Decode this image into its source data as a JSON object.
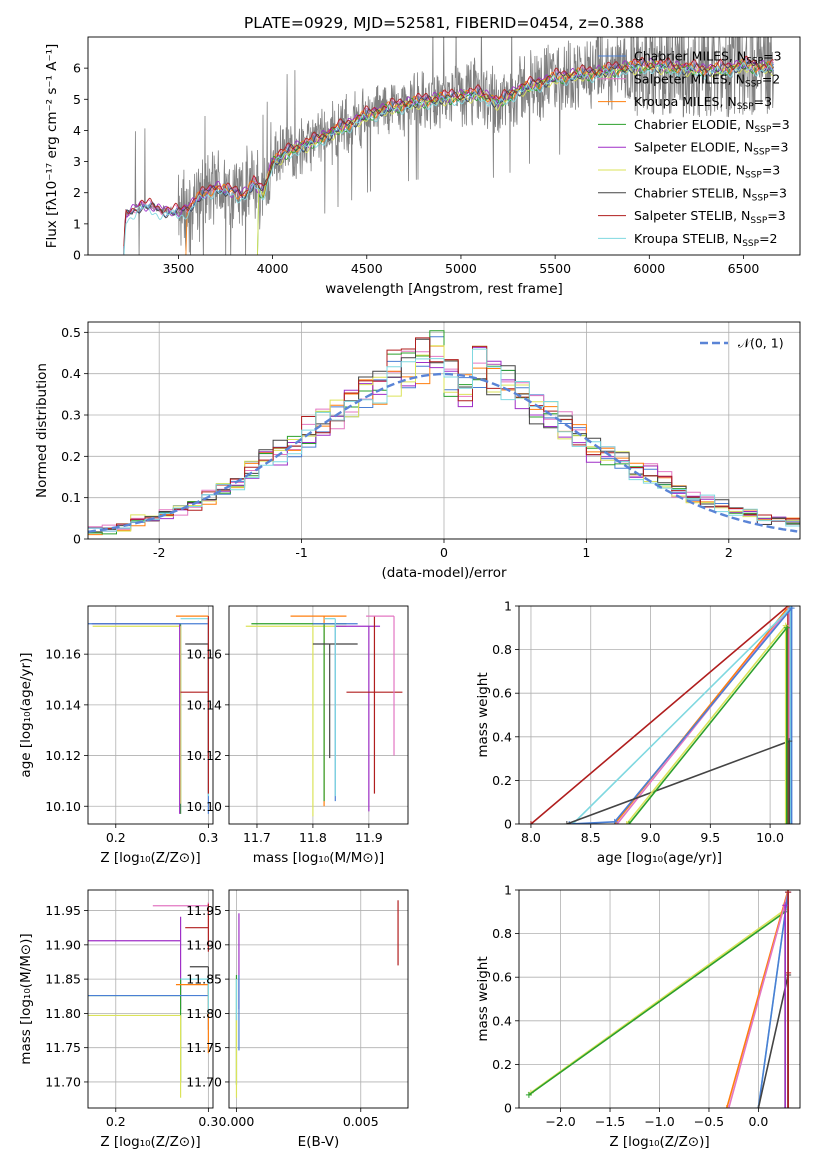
{
  "title": "PLATE=0929, MJD=52581, FIBERID=0454, z=0.388",
  "chart_data": [
    {
      "id": "spectrum",
      "type": "line",
      "xlabel": "wavelength [Angstrom, rest frame]",
      "ylabel": "Flux [fλ10⁻¹⁷ erg cm⁻² s⁻¹ A⁻¹]",
      "xlim": [
        3020,
        6800
      ],
      "ylim": [
        0,
        7
      ],
      "xticks": [
        3500,
        4000,
        4500,
        5000,
        5500,
        6000,
        6500
      ],
      "yticks": [
        0,
        1,
        2,
        3,
        4,
        5,
        6
      ],
      "grid": false,
      "legend_position": "top-right",
      "data_trend": {
        "x": [
          3210,
          3220,
          3300,
          3400,
          3500,
          3550,
          3600,
          3700,
          3750,
          3800,
          3850,
          3900,
          3950,
          4000,
          4100,
          4200,
          4300,
          4400,
          4500,
          4600,
          4700,
          4800,
          4900,
          5000,
          5100,
          5200,
          5300,
          5400,
          5500,
          5600,
          5700,
          5800,
          5900,
          6000,
          6100,
          6200,
          6300,
          6400,
          6500,
          6600,
          6650
        ],
        "y": [
          0,
          1.25,
          1.6,
          1.45,
          1.35,
          1.5,
          1.8,
          2.2,
          2.05,
          2.0,
          1.95,
          2.3,
          2.0,
          3.0,
          3.4,
          3.6,
          3.9,
          4.2,
          4.5,
          4.7,
          4.85,
          4.95,
          5.05,
          5.1,
          5.2,
          4.9,
          5.3,
          5.5,
          5.7,
          5.8,
          5.85,
          5.95,
          6.05,
          6.1,
          6.05,
          6.0,
          5.95,
          6.0,
          6.1,
          6.05,
          6.0
        ]
      },
      "series": [
        {
          "name": "Chabrier MILES, N<sub>SSP</sub>=3",
          "color": "#4a7fd4"
        },
        {
          "name": "Salpeter MILES, N<sub>SSP</sub>=2",
          "color": "#e377c2"
        },
        {
          "name": "Kroupa MILES, N<sub>SSP</sub>=3",
          "color": "#ff7f0e"
        },
        {
          "name": "Chabrier ELODIE, N<sub>SSP</sub>=3",
          "color": "#2ca02c"
        },
        {
          "name": "Salpeter ELODIE, N<sub>SSP</sub>=3",
          "color": "#9f2fc7"
        },
        {
          "name": "Kroupa ELODIE, N<sub>SSP</sub>=3",
          "color": "#dbe35a"
        },
        {
          "name": "Chabrier STELIB, N<sub>SSP</sub>=3",
          "color": "#444444"
        },
        {
          "name": "Salpeter STELIB, N<sub>SSP</sub>=3",
          "color": "#b01e1e"
        },
        {
          "name": "Kroupa STELIB, N<sub>SSP</sub>=2",
          "color": "#7fd8e0"
        }
      ]
    },
    {
      "id": "residuals",
      "type": "histogram",
      "xlabel": "(data-model)/error",
      "ylabel": "Normed distribution",
      "xlim": [
        -2.5,
        2.5
      ],
      "ylim": [
        0,
        0.525
      ],
      "xticks": [
        -2,
        -1,
        0,
        1,
        2
      ],
      "yticks": [
        0.0,
        0.1,
        0.2,
        0.3,
        0.4,
        0.5
      ],
      "grid": true,
      "legend_position": "top-right",
      "legend": "𝒩(0, 1)",
      "gaussian": {
        "mean": 0,
        "sigma": 1,
        "color": "#5a84d6"
      },
      "bin_edges_range": [
        -2.5,
        2.5
      ],
      "bin_count": 50,
      "base_values": [
        0.02,
        0.025,
        0.03,
        0.045,
        0.05,
        0.06,
        0.07,
        0.08,
        0.1,
        0.12,
        0.14,
        0.17,
        0.19,
        0.21,
        0.23,
        0.26,
        0.28,
        0.31,
        0.33,
        0.36,
        0.38,
        0.4,
        0.41,
        0.43,
        0.45,
        0.4,
        0.37,
        0.42,
        0.38,
        0.37,
        0.35,
        0.32,
        0.3,
        0.28,
        0.26,
        0.22,
        0.2,
        0.19,
        0.17,
        0.16,
        0.14,
        0.12,
        0.1,
        0.09,
        0.08,
        0.07,
        0.06,
        0.05,
        0.045,
        0.04
      ]
    },
    {
      "id": "age-vs-Z",
      "type": "errorbar",
      "xlabel": "Z [log₁₀(Z/Z⊙)]",
      "ylabel": "age  [log₁₀(age/yr)]",
      "xlim": [
        0.17,
        0.305
      ],
      "ylim": [
        10.093,
        10.179
      ],
      "xticks": [
        0.2,
        0.3
      ],
      "xticklabels": [
        "0.2",
        "0.3"
      ],
      "yticks": [
        10.1,
        10.12,
        10.14,
        10.16
      ],
      "yticklabels": [
        "10.10",
        "10.12",
        "10.14",
        "10.16"
      ],
      "grid": true,
      "points": [
        {
          "x": 0.3,
          "y": 10.175,
          "xerr_lo": 0.035,
          "yerr_lo": 0,
          "yerr_hi": 0,
          "color": "#ff7f0e"
        },
        {
          "x": 0.27,
          "y": 10.172,
          "xerr_lo": 0.095,
          "yerr_lo": 0.075,
          "color": "#2ca02c"
        },
        {
          "x": 0.27,
          "y": 10.171,
          "xerr_lo": 0.095,
          "yerr_lo": 0.07,
          "color": "#dbe35a"
        },
        {
          "x": 0.269,
          "y": 10.172,
          "xerr_lo": 0.095,
          "yerr_lo": 0.075,
          "color": "#9f2fc7"
        },
        {
          "x": 0.3,
          "y": 10.172,
          "xerr_lo": 0.13,
          "yerr_lo": 0.075,
          "color": "#4a7fd4"
        },
        {
          "x": 0.3,
          "y": 10.174,
          "xerr_lo": 0.03,
          "yerr_lo": 0.07,
          "color": "#7fd8e0"
        },
        {
          "x": 0.3,
          "y": 10.164,
          "xerr_lo": 0.025,
          "yerr_lo": 0.045,
          "color": "#444444"
        },
        {
          "x": 0.3,
          "y": 10.145,
          "xerr_lo": 0.03,
          "yerr_lo": 0.04,
          "yerr_hi": 0.03,
          "color": "#b01e1e"
        }
      ]
    },
    {
      "id": "age-vs-mass",
      "type": "errorbar",
      "xlabel": "mass [log₁₀(M/M⊙)]",
      "ylabel": "",
      "xlim": [
        11.65,
        11.97
      ],
      "ylim": [
        10.093,
        10.179
      ],
      "xticks": [
        11.7,
        11.8,
        11.9
      ],
      "xticklabels": [
        "11.7",
        "11.8",
        "11.9"
      ],
      "yticks": [
        10.1,
        10.12,
        10.14,
        10.16
      ],
      "yticklabels": [
        "10.10",
        "10.12",
        "10.14",
        "10.16"
      ],
      "grid": true,
      "points": [
        {
          "x": 11.82,
          "y": 10.175,
          "xerr_lo": 0.06,
          "xerr_hi": 0.04,
          "yerr_lo": 0.075,
          "color": "#ff7f0e"
        },
        {
          "x": 11.8,
          "y": 10.171,
          "xerr_lo": 0.12,
          "xerr_hi": 0.06,
          "yerr_lo": 0.075,
          "color": "#dbe35a"
        },
        {
          "x": 11.82,
          "y": 10.172,
          "xerr_lo": 0.13,
          "xerr_hi": 0.04,
          "yerr_lo": 0.07,
          "color": "#2ca02c"
        },
        {
          "x": 11.9,
          "y": 10.171,
          "xerr_lo": 0.06,
          "xerr_hi": 0.02,
          "yerr_lo": 0.073,
          "color": "#9f2fc7"
        },
        {
          "x": 11.84,
          "y": 10.172,
          "xerr_lo": 0.04,
          "xerr_hi": 0.04,
          "yerr_lo": 0.07,
          "color": "#4a7fd4"
        },
        {
          "x": 11.83,
          "y": 10.164,
          "xerr_lo": 0.03,
          "xerr_hi": 0.05,
          "yerr_lo": 0.045,
          "color": "#444444"
        },
        {
          "x": 11.91,
          "y": 10.145,
          "xerr_lo": 0.05,
          "xerr_hi": 0.05,
          "yerr_lo": 0.04,
          "yerr_hi": 0.03,
          "color": "#b01e1e"
        },
        {
          "x": 11.945,
          "y": 10.175,
          "xerr_lo": 0.05,
          "yerr_lo": 0.055,
          "color": "#e377c2"
        },
        {
          "x": 11.84,
          "y": 10.174,
          "xerr_lo": 0.02,
          "yerr_lo": 0.07,
          "color": "#7fd8e0"
        }
      ]
    },
    {
      "id": "cumulative-age",
      "type": "line",
      "xlabel": "age  [log₁₀(age/yr)]",
      "ylabel": "mass weight",
      "xlim": [
        7.9,
        10.25
      ],
      "ylim": [
        0,
        1
      ],
      "xticks": [
        8.0,
        8.5,
        9.0,
        9.5,
        10.0
      ],
      "xticklabels": [
        "8.0",
        "8.5",
        "9.0",
        "9.5",
        "10.0"
      ],
      "yticks": [
        0.0,
        0.2,
        0.4,
        0.6,
        0.8,
        1.0
      ],
      "grid": true,
      "series": [
        {
          "color": "#b01e1e",
          "x": [
            8.0,
            10.15,
            10.15
          ],
          "y": [
            0,
            1,
            0
          ]
        },
        {
          "color": "#ff7f0e",
          "x": [
            8.7,
            10.16,
            10.16
          ],
          "y": [
            0,
            1,
            0
          ]
        },
        {
          "color": "#e377c2",
          "x": [
            8.72,
            10.16,
            10.16
          ],
          "y": [
            0,
            0.99,
            0
          ]
        },
        {
          "color": "#7fd8e0",
          "x": [
            8.35,
            10.17,
            10.17
          ],
          "y": [
            0,
            0.99,
            0
          ]
        },
        {
          "color": "#4a7fd4",
          "x": [
            8.32,
            8.7,
            10.18,
            10.18
          ],
          "y": [
            0,
            0.01,
            0.99,
            0
          ]
        },
        {
          "color": "#444444",
          "x": [
            8.3,
            10.16,
            10.16
          ],
          "y": [
            0,
            0.38,
            0
          ]
        },
        {
          "color": "#dbe35a",
          "x": [
            8.8,
            10.13,
            10.13
          ],
          "y": [
            0,
            0.91,
            0
          ]
        },
        {
          "color": "#2ca02c",
          "x": [
            8.82,
            10.14,
            10.14
          ],
          "y": [
            0,
            0.9,
            0
          ]
        }
      ]
    },
    {
      "id": "mass-vs-Z",
      "type": "errorbar",
      "xlabel": "Z [log₁₀(Z/Z⊙)]",
      "ylabel": "mass [log₁₀(M/M⊙)]",
      "xlim": [
        0.17,
        0.305
      ],
      "ylim": [
        11.662,
        11.98
      ],
      "xticks": [
        0.2,
        0.3
      ],
      "xticklabels": [
        "0.2",
        "0.3"
      ],
      "yticks": [
        11.7,
        11.75,
        11.8,
        11.85,
        11.9,
        11.95
      ],
      "yticklabels": [
        "11.70",
        "11.75",
        "11.80",
        "11.85",
        "11.90",
        "11.95"
      ],
      "grid": true,
      "points": [
        {
          "x": 0.3,
          "y": 11.957,
          "xerr_lo": 0.06,
          "yerr_lo": 0,
          "yerr_hi": 0.005,
          "color": "#e377c2"
        },
        {
          "x": 0.27,
          "y": 11.906,
          "xerr_lo": 0.1,
          "yerr_lo": 0.1,
          "yerr_hi": 0.035,
          "color": "#9f2fc7"
        },
        {
          "x": 0.3,
          "y": 11.925,
          "xerr_lo": 0.025,
          "yerr_lo": 0.035,
          "yerr_hi": 0.035,
          "color": "#b01e1e"
        },
        {
          "x": 0.3,
          "y": 11.868,
          "xerr_lo": 0.02,
          "yerr_lo": 0.04,
          "color": "#444444"
        },
        {
          "x": 0.27,
          "y": 11.826,
          "xerr_lo": 0.1,
          "yerr_lo": 0.125,
          "yerr_hi": 0.025,
          "color": "#2ca02c"
        },
        {
          "x": 0.3,
          "y": 11.826,
          "xerr_lo": 0.13,
          "yerr_lo": 0.05,
          "yerr_hi": 0.025,
          "color": "#4a7fd4"
        },
        {
          "x": 0.3,
          "y": 11.842,
          "xerr_lo": 0.035,
          "yerr_lo": 0.1,
          "color": "#ff7f0e"
        },
        {
          "x": 0.27,
          "y": 11.797,
          "xerr_lo": 0.1,
          "yerr_lo": 0.12,
          "color": "#dbe35a"
        },
        {
          "x": 0.3,
          "y": 11.85,
          "xerr_lo": 0.03,
          "yerr_lo": 0.05,
          "color": "#7fd8e0"
        }
      ]
    },
    {
      "id": "mass-vs-EBV",
      "type": "errorbar",
      "xlabel": "E(B-V)",
      "ylabel": "",
      "xlim": [
        -0.0003,
        0.0069
      ],
      "ylim": [
        11.662,
        11.98
      ],
      "xticks": [
        0.0,
        0.005
      ],
      "xticklabels": [
        "0.000",
        "0.005"
      ],
      "yticks": [
        11.7,
        11.75,
        11.8,
        11.85,
        11.9,
        11.95
      ],
      "yticklabels": [
        "11.70",
        "11.75",
        "11.80",
        "11.85",
        "11.90",
        "11.95"
      ],
      "grid": true,
      "points": [
        {
          "x": 0.0065,
          "y": 11.925,
          "yerr_lo": 0.055,
          "yerr_hi": 0.04,
          "color": "#b01e1e"
        },
        {
          "x": 0.0001,
          "y": 11.906,
          "yerr_lo": 0.1,
          "yerr_hi": 0.04,
          "color": "#9f2fc7"
        },
        {
          "x": 0.0,
          "y": 11.96,
          "yerr_lo": 0.0,
          "yerr_hi": 0.0,
          "color": "#e377c2"
        },
        {
          "x": 0.0,
          "y": 11.826,
          "yerr_lo": 0.13,
          "yerr_hi": 0.03,
          "color": "#2ca02c"
        },
        {
          "x": 0.0,
          "y": 11.797,
          "yerr_lo": 0.12,
          "color": "#dbe35a"
        },
        {
          "x": 0.0001,
          "y": 11.826,
          "yerr_lo": 0.08,
          "yerr_hi": 0.03,
          "color": "#4a7fd4"
        },
        {
          "x": 0.0,
          "y": 11.85,
          "yerr_lo": 0.06,
          "color": "#7fd8e0"
        }
      ]
    },
    {
      "id": "cumulative-Z",
      "type": "line",
      "xlabel": "Z [log₁₀(Z/Z⊙)]",
      "ylabel": "mass weight",
      "xlim": [
        -2.42,
        0.42
      ],
      "ylim": [
        0,
        1
      ],
      "xticks": [
        -2.0,
        -1.5,
        -1.0,
        -0.5,
        0.0
      ],
      "xticklabels": [
        "−2.0",
        "−1.5",
        "−1.0",
        "−0.5",
        "0.0"
      ],
      "yticks": [
        0.0,
        0.2,
        0.4,
        0.6,
        0.8,
        1.0
      ],
      "grid": true,
      "series": [
        {
          "color": "#dbe35a",
          "x": [
            -2.3,
            0.27,
            0.27
          ],
          "y": [
            0.07,
            0.91,
            0
          ]
        },
        {
          "color": "#2ca02c",
          "x": [
            -2.32,
            0.27,
            0.27
          ],
          "y": [
            0.06,
            0.9,
            0
          ]
        },
        {
          "color": "#ff7f0e",
          "x": [
            -0.32,
            0.3,
            0.3
          ],
          "y": [
            0,
            1,
            0
          ]
        },
        {
          "color": "#e377c2",
          "x": [
            -0.3,
            0.3,
            0.3
          ],
          "y": [
            0,
            0.99,
            0
          ]
        },
        {
          "color": "#7fd8e0",
          "x": [
            0.0,
            0.3,
            0.3
          ],
          "y": [
            0,
            0.99,
            0
          ]
        },
        {
          "color": "#4a7fd4",
          "x": [
            0.0,
            0.3,
            0.3
          ],
          "y": [
            0,
            0.99,
            0
          ]
        },
        {
          "color": "#444444",
          "x": [
            0.0,
            0.3,
            0.3
          ],
          "y": [
            0,
            0.61,
            0
          ]
        },
        {
          "color": "#b01e1e",
          "x": [
            0.3,
            0.3,
            0.3,
            0.3
          ],
          "y": [
            0,
            0.99,
            0.62,
            0
          ]
        },
        {
          "color": "#9f2fc7",
          "x": [
            0.27,
            0.27
          ],
          "y": [
            0,
            0.93
          ]
        }
      ]
    }
  ]
}
